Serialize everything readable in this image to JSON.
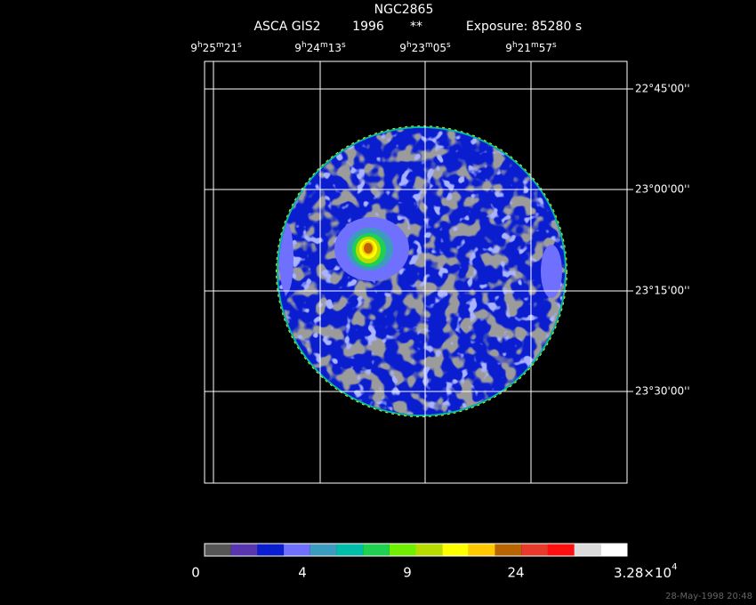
{
  "header": {
    "title": "NGC2865",
    "instrument": "ASCA GIS2",
    "year": "1996",
    "marker": "**",
    "exposure": "Exposure: 85280 s"
  },
  "ra_labels": [
    [
      "9",
      "h",
      "25",
      "m",
      "21",
      "s"
    ],
    [
      "9",
      "h",
      "24",
      "m",
      "13",
      "s"
    ],
    [
      "9",
      "h",
      "23",
      "m",
      "05",
      "s"
    ],
    [
      "9",
      "h",
      "21",
      "m",
      "57",
      "s"
    ]
  ],
  "dec_labels": [
    "22°45'00''",
    "23°00'00''",
    "23°15'00''",
    "23°30'00''"
  ],
  "colorbar": {
    "colors": [
      "#555555",
      "#5a35b0",
      "#0a1ed0",
      "#7070ff",
      "#3c9cc0",
      "#00bca8",
      "#20d050",
      "#70f000",
      "#b8dc00",
      "#ffff00",
      "#ffc800",
      "#b86400",
      "#e83a2a",
      "#ff1010",
      "#dcdcdc",
      "#ffffff"
    ],
    "labels": [
      "0",
      "4",
      "9",
      "24"
    ],
    "max_label": "3.28×10",
    "max_exponent": "4"
  },
  "footer": "28-May-1998 20:48"
}
